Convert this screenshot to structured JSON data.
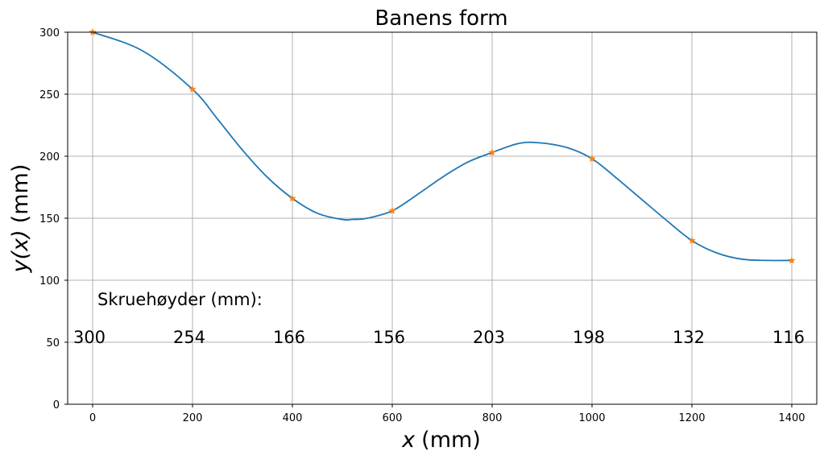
{
  "chart_data": {
    "type": "line",
    "title": "Banens form",
    "xlabel": "(mm)",
    "xlabel_var": "x",
    "ylabel": "(mm)",
    "ylabel_var": "y(x)",
    "xlim": [
      -50,
      1450
    ],
    "ylim": [
      0,
      300
    ],
    "xticks": [
      0,
      200,
      400,
      600,
      800,
      1000,
      1200,
      1400
    ],
    "yticks": [
      0,
      50,
      100,
      150,
      200,
      250,
      300
    ],
    "grid": true,
    "curve": {
      "x": [
        0,
        100,
        200,
        250,
        300,
        350,
        400,
        450,
        500,
        520,
        550,
        600,
        650,
        700,
        750,
        800,
        850,
        890,
        950,
        1000,
        1050,
        1100,
        1150,
        1200,
        1250,
        1300,
        1350,
        1400
      ],
      "y": [
        300,
        285,
        254,
        230,
        205,
        183,
        166,
        154,
        149,
        149,
        150,
        156,
        169,
        183,
        195,
        203,
        210,
        211,
        207,
        198,
        182,
        165,
        148,
        132,
        122,
        117,
        116,
        116
      ]
    },
    "points": {
      "x": [
        0,
        200,
        400,
        600,
        800,
        1000,
        1200,
        1400
      ],
      "y": [
        300,
        254,
        166,
        156,
        203,
        198,
        132,
        116
      ]
    },
    "annotation_title": "Skruehøyder (mm):",
    "annotation_values": [
      "300",
      "254",
      "166",
      "156",
      "203",
      "198",
      "132",
      "116"
    ],
    "colors": {
      "curve": "#1f77b4",
      "markers": "#ff7f0e",
      "grid": "#b0b0b0"
    }
  }
}
